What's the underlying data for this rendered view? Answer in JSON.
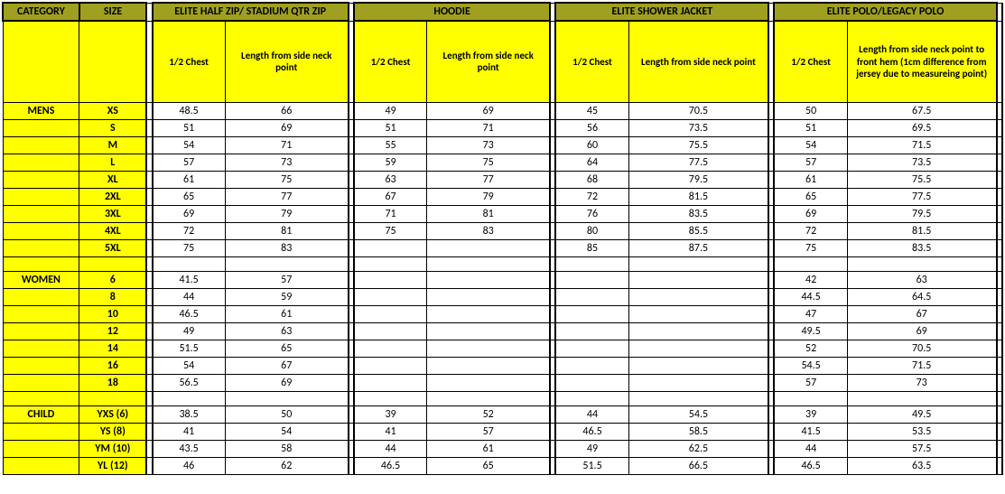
{
  "colors": {
    "olive": "#a0a020",
    "yellow": "#ffff00",
    "border": "#000000",
    "bg": "#ffffff"
  },
  "headers": {
    "category": "CATEGORY",
    "size": "SIZE",
    "groups": [
      "ELITE HALF ZIP/ STADIUM QTR ZIP",
      "HOODIE",
      "ELITE SHOWER JACKET",
      "ELITE POLO/LEGACY POLO"
    ],
    "sub_chest": "1/2 Chest",
    "sub_len": "Length from side neck point",
    "sub_len_polo": "Length from side neck point to front hem (1cm difference from jersey due to measureing point)"
  },
  "categories": [
    {
      "name": "MENS",
      "rows": [
        {
          "size": "XS",
          "v": [
            "48.5",
            "66",
            "49",
            "69",
            "45",
            "70.5",
            "50",
            "67.5"
          ]
        },
        {
          "size": "S",
          "v": [
            "51",
            "69",
            "51",
            "71",
            "56",
            "73.5",
            "51",
            "69.5"
          ]
        },
        {
          "size": "M",
          "v": [
            "54",
            "71",
            "55",
            "73",
            "60",
            "75.5",
            "54",
            "71.5"
          ]
        },
        {
          "size": "L",
          "v": [
            "57",
            "73",
            "59",
            "75",
            "64",
            "77.5",
            "57",
            "73.5"
          ]
        },
        {
          "size": "XL",
          "v": [
            "61",
            "75",
            "63",
            "77",
            "68",
            "79.5",
            "61",
            "75.5"
          ]
        },
        {
          "size": "2XL",
          "v": [
            "65",
            "77",
            "67",
            "79",
            "72",
            "81.5",
            "65",
            "77.5"
          ]
        },
        {
          "size": "3XL",
          "v": [
            "69",
            "79",
            "71",
            "81",
            "76",
            "83.5",
            "69",
            "79.5"
          ]
        },
        {
          "size": "4XL",
          "v": [
            "72",
            "81",
            "75",
            "83",
            "80",
            "85.5",
            "72",
            "81.5"
          ]
        },
        {
          "size": "5XL",
          "v": [
            "75",
            "83",
            "",
            "",
            "85",
            "87.5",
            "75",
            "83.5"
          ]
        }
      ]
    },
    {
      "name": "WOMEN",
      "rows": [
        {
          "size": "6",
          "v": [
            "41.5",
            "57",
            "",
            "",
            "",
            "",
            "42",
            "63"
          ]
        },
        {
          "size": "8",
          "v": [
            "44",
            "59",
            "",
            "",
            "",
            "",
            "44.5",
            "64.5"
          ]
        },
        {
          "size": "10",
          "v": [
            "46.5",
            "61",
            "",
            "",
            "",
            "",
            "47",
            "67"
          ]
        },
        {
          "size": "12",
          "v": [
            "49",
            "63",
            "",
            "",
            "",
            "",
            "49.5",
            "69"
          ]
        },
        {
          "size": "14",
          "v": [
            "51.5",
            "65",
            "",
            "",
            "",
            "",
            "52",
            "70.5"
          ]
        },
        {
          "size": "16",
          "v": [
            "54",
            "67",
            "",
            "",
            "",
            "",
            "54.5",
            "71.5"
          ]
        },
        {
          "size": "18",
          "v": [
            "56.5",
            "69",
            "",
            "",
            "",
            "",
            "57",
            "73"
          ]
        }
      ]
    },
    {
      "name": "CHILD",
      "rows": [
        {
          "size": "YXS (6)",
          "v": [
            "38.5",
            "50",
            "39",
            "52",
            "44",
            "54.5",
            "39",
            "49.5"
          ]
        },
        {
          "size": "YS (8)",
          "v": [
            "41",
            "54",
            "41",
            "57",
            "46.5",
            "58.5",
            "41.5",
            "53.5"
          ]
        },
        {
          "size": "YM (10)",
          "v": [
            "43.5",
            "58",
            "44",
            "61",
            "49",
            "62.5",
            "44",
            "57.5"
          ]
        },
        {
          "size": "YL (12)",
          "v": [
            "46",
            "62",
            "46.5",
            "65",
            "51.5",
            "66.5",
            "46.5",
            "63.5"
          ]
        }
      ]
    }
  ]
}
